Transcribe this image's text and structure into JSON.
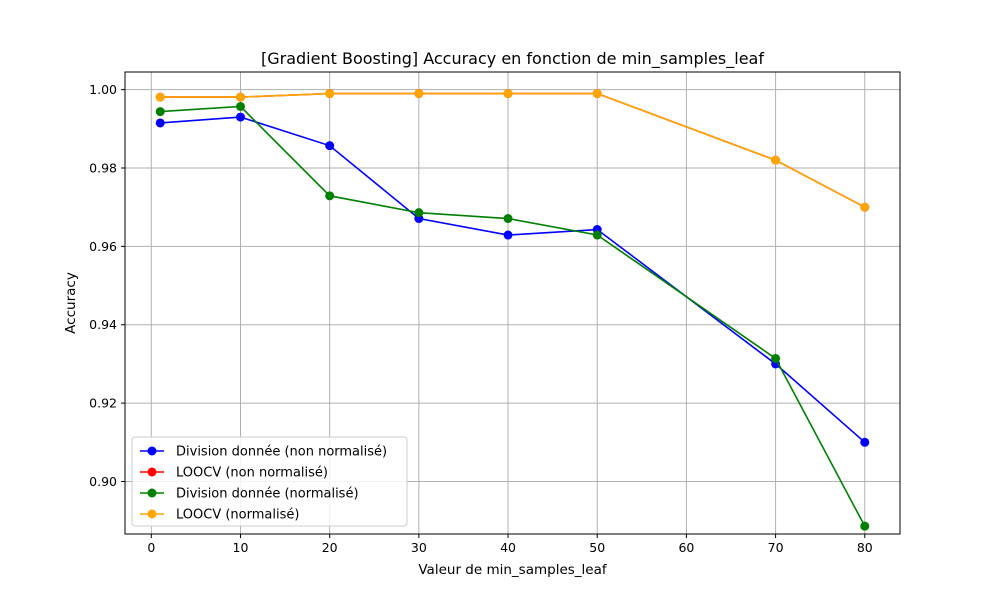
{
  "chart_data": {
    "type": "line",
    "title": "[Gradient Boosting] Accuracy en fonction de min_samples_leaf",
    "xlabel": "Valeur de min_samples_leaf",
    "ylabel": "Accuracy",
    "x": [
      1,
      10,
      20,
      30,
      40,
      50,
      70,
      80
    ],
    "xlim": [
      -2.95,
      83.95
    ],
    "ylim": [
      0.8866,
      1.0045
    ],
    "xticks": [
      0,
      10,
      20,
      30,
      40,
      50,
      60,
      70,
      80
    ],
    "yticks": [
      0.9,
      0.92,
      0.94,
      0.96,
      0.98,
      1.0
    ],
    "xtick_labels": [
      "0",
      "10",
      "20",
      "30",
      "40",
      "50",
      "60",
      "70",
      "80"
    ],
    "ytick_labels": [
      "0.90",
      "0.92",
      "0.94",
      "0.96",
      "0.98",
      "1.00"
    ],
    "grid": true,
    "legend_position": "lower-left",
    "series": [
      {
        "name": "Division donnée (non normalisé)",
        "color": "#0000ff",
        "values": [
          0.9915,
          0.993,
          0.9857,
          0.9671,
          0.9629,
          0.9643,
          0.93,
          0.91
        ]
      },
      {
        "name": "LOOCV (non normalisé)",
        "color": "#ff0000",
        "values": [
          0.9981,
          0.9981,
          0.999,
          0.999,
          0.999,
          0.999,
          0.982,
          0.97
        ]
      },
      {
        "name": "Division donnée (normalisé)",
        "color": "#008000",
        "values": [
          0.9944,
          0.9957,
          0.9729,
          0.9686,
          0.9671,
          0.9629,
          0.9314,
          0.8886
        ]
      },
      {
        "name": "LOOCV (normalisé)",
        "color": "#ffa500",
        "values": [
          0.9981,
          0.9981,
          0.999,
          0.999,
          0.999,
          0.999,
          0.982,
          0.97
        ]
      }
    ]
  }
}
